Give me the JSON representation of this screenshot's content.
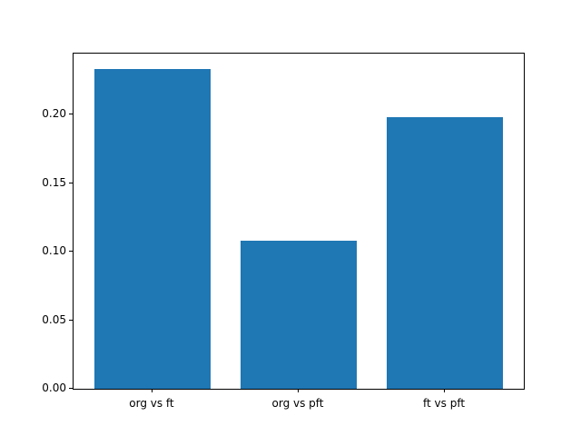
{
  "figure": {
    "background": "#ffffff",
    "frame_color": "#000000"
  },
  "chart_data": {
    "type": "bar",
    "title": "",
    "xlabel": "",
    "ylabel": "",
    "categories": [
      "org vs ft",
      "org vs pft",
      "ft vs pft"
    ],
    "values": [
      0.233,
      0.108,
      0.198
    ],
    "bar_color": "#1f77b4",
    "bar_width_fraction": 0.8,
    "xlim": [
      -0.54,
      2.54
    ],
    "ylim": [
      0,
      0.2445
    ],
    "yticks": [
      0.0,
      0.05,
      0.1,
      0.15,
      0.2
    ],
    "ytick_labels": [
      "0.00",
      "0.05",
      "0.10",
      "0.15",
      "0.20"
    ],
    "grid": false,
    "legend": null
  }
}
